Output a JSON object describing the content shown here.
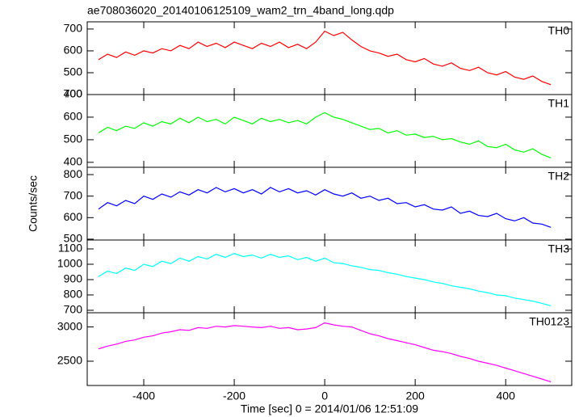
{
  "chart_data": {
    "type": "line",
    "title": "ae708036020_20140106125109_wam2_trn_4band_long.qdp",
    "xlabel": "Time [sec] 0 = 2014/01/06 12:51:09",
    "ylabel": "Counts/sec",
    "x": [
      -500,
      -480,
      -460,
      -440,
      -420,
      -400,
      -380,
      -360,
      -340,
      -320,
      -300,
      -280,
      -260,
      -240,
      -220,
      -200,
      -180,
      -160,
      -140,
      -120,
      -100,
      -80,
      -60,
      -40,
      -20,
      0,
      20,
      40,
      60,
      80,
      100,
      120,
      140,
      160,
      180,
      200,
      220,
      240,
      260,
      280,
      300,
      320,
      340,
      360,
      380,
      400,
      420,
      440,
      460,
      480,
      500
    ],
    "xlim": [
      -525,
      546
    ],
    "xticks": [
      -400,
      -200,
      0,
      200,
      400
    ],
    "series": [
      {
        "name": "TH0",
        "color": "#ff0000",
        "ylim": [
          400,
          733
        ],
        "yticks": [
          400,
          500,
          600,
          700
        ],
        "values": [
          560,
          585,
          570,
          595,
          580,
          600,
          590,
          610,
          600,
          625,
          610,
          640,
          620,
          635,
          615,
          640,
          625,
          610,
          635,
          620,
          640,
          615,
          630,
          610,
          640,
          690,
          670,
          685,
          650,
          620,
          600,
          590,
          575,
          585,
          560,
          550,
          565,
          540,
          530,
          545,
          520,
          510,
          525,
          500,
          490,
          505,
          480,
          470,
          485,
          460,
          445
        ]
      },
      {
        "name": "TH1",
        "color": "#00ff00",
        "ylim": [
          378,
          700
        ],
        "yticks": [
          400,
          500,
          600,
          700
        ],
        "values": [
          530,
          555,
          540,
          560,
          550,
          575,
          560,
          580,
          570,
          595,
          575,
          600,
          580,
          590,
          570,
          600,
          585,
          570,
          595,
          580,
          590,
          575,
          585,
          570,
          600,
          620,
          600,
          590,
          575,
          560,
          545,
          550,
          530,
          540,
          520,
          525,
          510,
          515,
          500,
          505,
          490,
          480,
          495,
          470,
          465,
          480,
          455,
          445,
          460,
          435,
          420
        ]
      },
      {
        "name": "TH2",
        "color": "#0000ff",
        "ylim": [
          496,
          834
        ],
        "yticks": [
          500,
          600,
          700,
          800
        ],
        "values": [
          640,
          670,
          655,
          680,
          665,
          700,
          685,
          710,
          695,
          720,
          705,
          730,
          715,
          740,
          720,
          735,
          715,
          730,
          710,
          740,
          720,
          735,
          715,
          725,
          705,
          730,
          710,
          700,
          715,
          690,
          700,
          680,
          690,
          665,
          670,
          650,
          660,
          640,
          635,
          650,
          620,
          630,
          610,
          605,
          620,
          595,
          585,
          600,
          575,
          570,
          555
        ]
      },
      {
        "name": "TH3",
        "color": "#00ffff",
        "ylim": [
          684,
          1158
        ],
        "yticks": [
          700,
          800,
          900,
          1000,
          1100
        ],
        "values": [
          920,
          955,
          940,
          975,
          960,
          1000,
          985,
          1020,
          1005,
          1040,
          1020,
          1050,
          1035,
          1065,
          1045,
          1070,
          1050,
          1060,
          1040,
          1065,
          1045,
          1055,
          1030,
          1045,
          1020,
          1040,
          1010,
          1005,
          990,
          980,
          965,
          960,
          945,
          935,
          920,
          910,
          900,
          885,
          875,
          860,
          850,
          840,
          825,
          815,
          800,
          795,
          780,
          770,
          760,
          745,
          730
        ]
      },
      {
        "name": "TH0123",
        "color": "#ff00ff",
        "ylim": [
          2146,
          3207
        ],
        "yticks": [
          2500,
          3000
        ],
        "values": [
          2680,
          2720,
          2750,
          2790,
          2810,
          2850,
          2870,
          2910,
          2930,
          2960,
          2950,
          2990,
          2980,
          3010,
          3000,
          3020,
          3010,
          3000,
          2990,
          3010,
          2980,
          2990,
          2960,
          2970,
          2990,
          3060,
          3030,
          3010,
          3000,
          2950,
          2900,
          2870,
          2830,
          2800,
          2770,
          2740,
          2700,
          2660,
          2640,
          2610,
          2570,
          2540,
          2500,
          2470,
          2440,
          2400,
          2360,
          2320,
          2280,
          2240,
          2200
        ]
      }
    ]
  }
}
